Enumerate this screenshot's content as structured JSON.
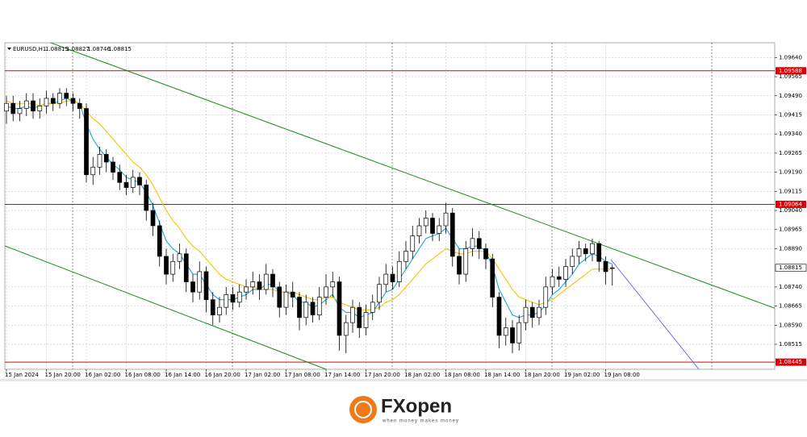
{
  "chart_data": {
    "type": "candlestick",
    "symbol": "EURUSD,H1",
    "categories": [
      "15 Jan 2024",
      null,
      null,
      null,
      null,
      null,
      "15 Jan 20:00",
      null,
      null,
      null,
      null,
      null,
      "16 Jan 02:00",
      null,
      null,
      null,
      null,
      null,
      "16 Jan 08:00",
      null,
      null,
      null,
      null,
      null,
      "16 Jan 14:00",
      null,
      null,
      null,
      null,
      null,
      "16 Jan 20:00",
      null,
      null,
      null,
      null,
      null,
      "17 Jan 02:00",
      null,
      null,
      null,
      null,
      null,
      "17 Jan 08:00",
      null,
      null,
      null,
      null,
      null,
      "17 Jan 14:00",
      null,
      null,
      null,
      null,
      null,
      "17 Jan 20:00",
      null,
      null,
      null,
      null,
      null,
      "18 Jan 02:00",
      null,
      null,
      null,
      null,
      null,
      "18 Jan 08:00",
      null,
      null,
      null,
      null,
      null,
      "18 Jan 14:00",
      null,
      null,
      null,
      null,
      null,
      "18 Jan 20:00",
      null,
      null,
      null,
      null,
      null,
      "19 Jan 02:00",
      null,
      null,
      null,
      null,
      null,
      "19 Jan 08:00",
      null
    ],
    "open": [
      1.0943,
      1.0946,
      1.0942,
      1.0944,
      1.0947,
      1.0943,
      1.0945,
      1.0948,
      1.0946,
      1.095,
      1.0948,
      1.0946,
      1.0944,
      1.0918,
      1.0921,
      1.0926,
      1.0923,
      1.0919,
      1.0915,
      1.0913,
      1.0917,
      1.0914,
      1.0904,
      1.0898,
      1.0886,
      1.0879,
      1.0884,
      1.0887,
      1.0876,
      1.0872,
      1.088,
      1.0869,
      1.0863,
      1.0866,
      1.0871,
      1.0868,
      1.0872,
      1.0874,
      1.0876,
      1.0873,
      1.0879,
      1.0874,
      1.0866,
      1.0872,
      1.087,
      1.0862,
      1.0868,
      1.0863,
      1.087,
      1.0874,
      1.0876,
      1.0855,
      1.086,
      1.0866,
      1.0858,
      1.0864,
      1.0868,
      1.0875,
      1.0879,
      1.0876,
      1.0884,
      1.0888,
      1.0894,
      1.0898,
      1.0901,
      1.0895,
      1.0898,
      1.0903,
      1.0886,
      1.0879,
      1.0889,
      1.0893,
      1.0889,
      1.0885,
      1.087,
      1.0855,
      1.0858,
      1.0852,
      1.086,
      1.0866,
      1.0862,
      1.0866,
      1.0874,
      1.0878,
      1.0877,
      1.0882,
      1.0886,
      1.0889,
      1.0887,
      1.0891,
      1.0884,
      1.08815
    ],
    "high": [
      1.0949,
      1.0949,
      1.0947,
      1.095,
      1.095,
      1.0948,
      1.0951,
      1.095,
      1.0952,
      1.0952,
      1.095,
      1.0948,
      1.0946,
      1.0925,
      1.0929,
      1.0928,
      1.0925,
      1.0922,
      1.0918,
      1.092,
      1.0919,
      1.0916,
      1.0907,
      1.09,
      1.0889,
      1.0887,
      1.0891,
      1.0889,
      1.0879,
      1.0884,
      1.0882,
      1.0872,
      1.087,
      1.0874,
      1.0874,
      1.0875,
      1.0877,
      1.088,
      1.0879,
      1.0883,
      1.0881,
      1.0876,
      1.0875,
      1.0876,
      1.0872,
      1.0871,
      1.087,
      1.0874,
      1.0879,
      1.088,
      1.0878,
      1.0863,
      1.0869,
      1.0868,
      1.0867,
      1.0871,
      1.0878,
      1.0883,
      1.0882,
      1.0888,
      1.0892,
      1.0898,
      1.0901,
      1.0904,
      1.0903,
      1.0901,
      1.0907,
      1.0905,
      1.0889,
      1.0892,
      1.0897,
      1.0896,
      1.0891,
      1.0887,
      1.0872,
      1.0862,
      1.0861,
      1.0863,
      1.0869,
      1.0868,
      1.0869,
      1.0878,
      1.0881,
      1.0882,
      1.0885,
      1.0889,
      1.0892,
      1.0891,
      1.0893,
      1.0892,
      1.0886,
      1.08827
    ],
    "low": [
      1.0938,
      1.0939,
      1.0939,
      1.0941,
      1.094,
      1.094,
      1.0942,
      1.0943,
      1.0944,
      1.0945,
      1.0943,
      1.094,
      1.0915,
      1.0914,
      1.0918,
      1.0919,
      1.0916,
      1.0912,
      1.091,
      1.0911,
      1.091,
      1.09,
      1.0894,
      1.0882,
      1.0875,
      1.0876,
      1.0881,
      1.0872,
      1.0868,
      1.0869,
      1.0864,
      1.0859,
      1.086,
      1.0863,
      1.0865,
      1.0866,
      1.0869,
      1.0871,
      1.0869,
      1.0871,
      1.087,
      1.0862,
      1.0863,
      1.0866,
      1.0857,
      1.0859,
      1.086,
      1.0861,
      1.0867,
      1.087,
      1.0849,
      1.0848,
      1.0856,
      1.0854,
      1.0855,
      1.0861,
      1.0865,
      1.0872,
      1.0873,
      1.0874,
      1.0881,
      1.0885,
      1.0891,
      1.0895,
      1.0892,
      1.0892,
      1.0895,
      1.0882,
      1.0875,
      1.0876,
      1.0886,
      1.0885,
      1.0881,
      1.0866,
      1.085,
      1.0851,
      1.0848,
      1.0849,
      1.0857,
      1.0858,
      1.0859,
      1.0863,
      1.0871,
      1.0874,
      1.0874,
      1.0879,
      1.0883,
      1.0884,
      1.0884,
      1.088,
      1.0875,
      1.08746
    ],
    "close": [
      1.0946,
      1.0942,
      1.0944,
      1.0947,
      1.0943,
      1.0945,
      1.0948,
      1.0946,
      1.095,
      1.0948,
      1.0946,
      1.0944,
      1.0918,
      1.0921,
      1.0926,
      1.0923,
      1.0919,
      1.0915,
      1.0913,
      1.0917,
      1.0914,
      1.0904,
      1.0898,
      1.0886,
      1.0879,
      1.0884,
      1.0887,
      1.0876,
      1.0872,
      1.088,
      1.0869,
      1.0863,
      1.0866,
      1.0871,
      1.0868,
      1.0872,
      1.0874,
      1.0876,
      1.0873,
      1.0879,
      1.0874,
      1.0866,
      1.0872,
      1.087,
      1.0862,
      1.0868,
      1.0863,
      1.087,
      1.0874,
      1.0876,
      1.0855,
      1.086,
      1.0866,
      1.0858,
      1.0864,
      1.0868,
      1.0875,
      1.0879,
      1.0876,
      1.0884,
      1.0888,
      1.0894,
      1.0898,
      1.0901,
      1.0895,
      1.0898,
      1.0903,
      1.0886,
      1.0879,
      1.0889,
      1.0893,
      1.0889,
      1.0885,
      1.087,
      1.0855,
      1.0858,
      1.0852,
      1.086,
      1.0866,
      1.0862,
      1.0866,
      1.0874,
      1.0878,
      1.0877,
      1.0882,
      1.0886,
      1.0889,
      1.0887,
      1.0891,
      1.0884,
      1.088,
      1.08815
    ],
    "moving_averages": [
      {
        "color": "#1ea7d8",
        "values": [
          1.0945,
          1.0944,
          1.0944,
          1.0945,
          1.0944,
          1.0945,
          1.0946,
          1.0946,
          1.0947,
          1.0948,
          1.0947,
          1.0946,
          1.0938,
          1.0932,
          1.0928,
          1.0925,
          1.0922,
          1.092,
          1.0917,
          1.0916,
          1.0915,
          1.0911,
          1.0906,
          1.0899,
          1.0892,
          1.0889,
          1.0887,
          1.0883,
          1.0879,
          1.0879,
          1.0875,
          1.0871,
          1.0869,
          1.0869,
          1.0869,
          1.087,
          1.0871,
          1.0873,
          1.0873,
          1.0875,
          1.0875,
          1.0872,
          1.0872,
          1.0871,
          1.0868,
          1.0868,
          1.0866,
          1.0867,
          1.0869,
          1.0871,
          1.0866,
          1.0864,
          1.0864,
          1.0862,
          1.0863,
          1.0864,
          1.0868,
          1.0872,
          1.0873,
          1.0877,
          1.0881,
          1.0885,
          1.0889,
          1.0893,
          1.0894,
          1.0895,
          1.0897,
          1.0893,
          1.0889,
          1.0889,
          1.089,
          1.089,
          1.0888,
          1.0882,
          1.0873,
          1.0868,
          1.0863,
          1.0862,
          1.0863,
          1.0863,
          1.0864,
          1.0867,
          1.0871,
          1.0873,
          1.0876,
          1.0879,
          1.0883,
          1.0885,
          1.0887,
          1.0886,
          1.0884,
          1.0883
        ]
      },
      {
        "color": "#f5c400",
        "values": [
          1.0947,
          1.0946,
          1.0946,
          1.0946,
          1.0946,
          1.0945,
          1.0946,
          1.0946,
          1.0946,
          1.0947,
          1.0947,
          1.0946,
          1.0943,
          1.094,
          1.0938,
          1.0935,
          1.0932,
          1.0929,
          1.0926,
          1.0923,
          1.0921,
          1.0918,
          1.0914,
          1.0909,
          1.0904,
          1.09,
          1.0897,
          1.0893,
          1.089,
          1.0888,
          1.0885,
          1.0882,
          1.0879,
          1.0877,
          1.0876,
          1.0875,
          1.0874,
          1.0874,
          1.0873,
          1.0873,
          1.0873,
          1.0872,
          1.0872,
          1.0872,
          1.0871,
          1.087,
          1.0869,
          1.0869,
          1.087,
          1.087,
          1.0868,
          1.0867,
          1.0866,
          1.0865,
          1.0865,
          1.0865,
          1.0866,
          1.0868,
          1.0869,
          1.0871,
          1.0874,
          1.0877,
          1.088,
          1.0883,
          1.0885,
          1.0887,
          1.0889,
          1.0888,
          1.0887,
          1.0887,
          1.0888,
          1.0888,
          1.0888,
          1.0885,
          1.0881,
          1.0877,
          1.0873,
          1.087,
          1.0869,
          1.0868,
          1.0867,
          1.0868,
          1.0869,
          1.0871,
          1.0873,
          1.0875,
          1.0877,
          1.0879,
          1.0881,
          1.0881,
          1.0881,
          1.0881
        ]
      }
    ],
    "levels": [
      1.09588,
      1.09064,
      1.08445
    ],
    "level_color": "#e00000",
    "last_price": 1.08815,
    "ylim": [
      1.08417,
      1.09698
    ],
    "yticks": [
      {
        "value": 1.0964,
        "label": "1.09640"
      },
      1.09565,
      {
        "value": 1.0949,
        "label": "1.09490"
      },
      1.09415,
      {
        "value": 1.0934,
        "label": "1.09340"
      },
      1.09265,
      {
        "value": 1.0919,
        "label": "1.09190"
      },
      1.09115,
      {
        "value": 1.0904,
        "label": "1.09040"
      },
      1.08965,
      {
        "value": 1.0889,
        "label": "1.08890"
      },
      {
        "value": 1.0874,
        "label": "1.08740"
      },
      1.08665,
      {
        "value": 1.0859,
        "label": "1.08590"
      },
      1.08515
    ],
    "grid": true
  },
  "branding": {
    "name": "FXopen",
    "tagline": "when money makes money"
  }
}
